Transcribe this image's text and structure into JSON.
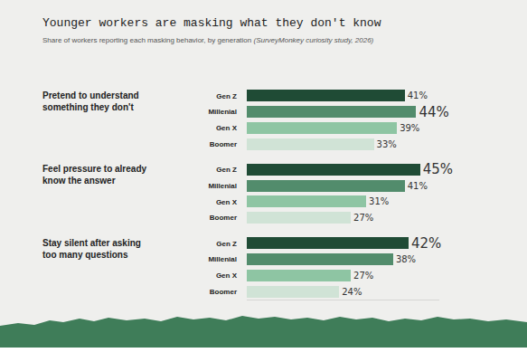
{
  "chart_data": {
    "type": "bar",
    "orientation": "horizontal",
    "title": "Younger workers are masking what they don't know",
    "subtitle": "Share of workers reporting each masking behavior, by generation (SurveyMonkey curiosity study, 2026)",
    "categories": [
      "Pretend to understand something they don't",
      "Feel pressure to already know the answer",
      "Stay silent after asking too many questions"
    ],
    "series": [
      {
        "name": "Gen Z",
        "color": "#1f4b35",
        "values": [
          41,
          45,
          42
        ],
        "value_labels": [
          "41%",
          "45%",
          "42%"
        ]
      },
      {
        "name": "Millenial",
        "color": "#528c6c",
        "values": [
          44,
          41,
          38
        ],
        "value_labels": [
          "44%",
          "41%",
          "38%"
        ]
      },
      {
        "name": "Gen X",
        "color": "#8ec5a3",
        "values": [
          39,
          31,
          27
        ],
        "value_labels": [
          "39%",
          "31%",
          "27%"
        ]
      },
      {
        "name": "Boomer",
        "color": "#d0e3d6",
        "values": [
          33,
          27,
          24
        ],
        "value_labels": [
          "33%",
          "27%",
          "24%"
        ]
      }
    ],
    "xlim": [
      0,
      50
    ],
    "data_labels": true,
    "tick_labels": "y",
    "grid": false
  }
}
